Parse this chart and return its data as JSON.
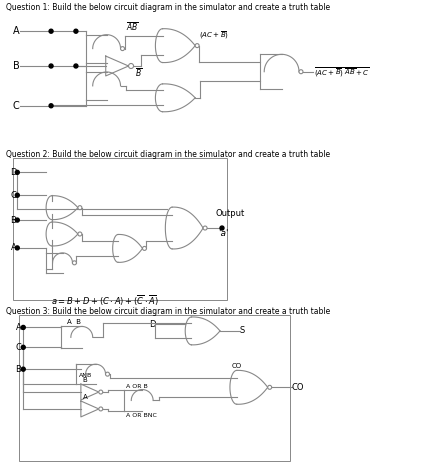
{
  "q1_text": "Question 1: Build the below circuit diagram in the simulator and create a truth table",
  "q2_text": "Question 2: Build the below circuit diagram in the simulator and create a truth table",
  "q3_text": "Question 3: Build the below circuit diagram in the simulator and create a truth table",
  "bg_color": "#ffffff",
  "lc": "#888888",
  "tc": "#000000",
  "qc_black": "#000000",
  "orange": "#cc6600",
  "lw": 0.8,
  "dot_r": 2.0
}
